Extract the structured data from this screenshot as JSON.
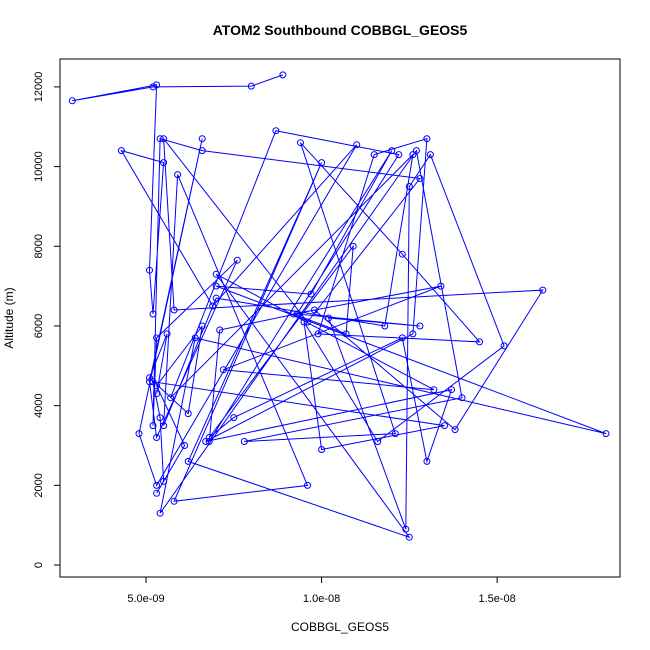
{
  "chart_data": {
    "type": "line",
    "title": "ATOM2 Southbound COBBGL_GEOS5",
    "xlabel": "COBBGL_GEOS5",
    "ylabel": "Altitude (m)",
    "xlim": [
      2.55e-09,
      1.85e-08
    ],
    "ylim": [
      -300,
      12700
    ],
    "x_ticks": [
      5e-09,
      1e-08,
      1.5e-08
    ],
    "x_tick_labels": [
      "5.0e-09",
      "1.0e-08",
      "1.5e-08"
    ],
    "y_ticks": [
      0,
      2000,
      4000,
      6000,
      8000,
      10000,
      12000
    ],
    "y_tick_labels": [
      "0",
      "2000",
      "4000",
      "6000",
      "8000",
      "10000",
      "12000"
    ],
    "marker": "open-circle",
    "series": [
      {
        "color": "#0000ff",
        "x": [
          8.9e-09,
          8e-09,
          5.2e-09,
          2.9e-09,
          5.3e-09,
          5.1e-09,
          5.2e-09,
          5.5e-09,
          4.3e-09,
          6.9e-09,
          1.1e-08,
          5.3e-09,
          4.8e-09,
          6.6e-09,
          5.1e-09,
          5.3e-09,
          7.6e-09,
          5.3e-09,
          5.2e-09,
          5.4e-09,
          6.6e-09,
          1.28e-08,
          9.6e-09,
          5.5e-09,
          5.8e-09,
          1.63e-08,
          1.38e-08,
          9.8e-09,
          7.1e-09,
          6.8e-09,
          1.2e-08,
          9.7e-09,
          7e-09,
          1.81e-08,
          6.4e-09,
          5.4e-09,
          1.27e-08,
          1.4e-08,
          7.8e-09,
          1.21e-08,
          9.4e-09,
          1.23e-08,
          1.45e-08,
          9.9e-09,
          1.15e-08,
          1.3e-08,
          1.26e-08,
          6.7e-09,
          1.37e-08,
          1.3e-08,
          1.23e-08,
          7.5e-09,
          6.8e-09,
          1.09e-08,
          1.07e-08,
          9.2e-09,
          1.34e-08,
          7.2e-09,
          1.32e-08,
          7e-09,
          1.25e-08,
          6.2e-09,
          1e-08,
          5.8e-09,
          9.6e-09,
          5.9e-09,
          5.5e-09,
          7e-09,
          1.18e-08,
          1.26e-08,
          5.7e-09,
          8.7e-09,
          1.22e-08,
          9.3e-09,
          1.28e-08,
          1.02e-08,
          1.24e-08,
          1.25e-08,
          1.31e-08,
          1.52e-08,
          1.16e-08,
          9.5e-09,
          1e-08,
          1.35e-08,
          5.2e-09,
          5.4e-09,
          5.5e-09,
          5.3e-09,
          6.1e-09,
          5.3e-09,
          6.6e-09,
          6.2e-09,
          5.1e-09,
          5.6e-09,
          5.3e-09
        ],
        "y": [
          12300,
          12020,
          12000,
          11650,
          12050,
          7400,
          6300,
          10100,
          10400,
          6500,
          10550,
          2000,
          3300,
          10700,
          4600,
          3200,
          7650,
          5700,
          3500,
          10700,
          10400,
          9700,
          6100,
          10700,
          6400,
          6900,
          3400,
          6400,
          5900,
          3100,
          10400,
          6800,
          7000,
          3300,
          5700,
          1300,
          10400,
          4200,
          3100,
          3300,
          10600,
          7800,
          5600,
          5800,
          10300,
          10700,
          5800,
          3100,
          4400,
          2600,
          5700,
          3700,
          3200,
          8000,
          5800,
          6300,
          7000,
          4900,
          4400,
          7300,
          700,
          2600,
          10100,
          1600,
          2000,
          9800,
          3500,
          6700,
          6000,
          10300,
          4200,
          10900,
          10300,
          6300,
          6000,
          6200,
          900,
          9500,
          10300,
          5500,
          3100,
          6100,
          2900,
          3500,
          4600,
          3700,
          2100,
          1800,
          3000,
          4500,
          6000,
          3800,
          4700,
          5800,
          4300
        ]
      }
    ]
  }
}
